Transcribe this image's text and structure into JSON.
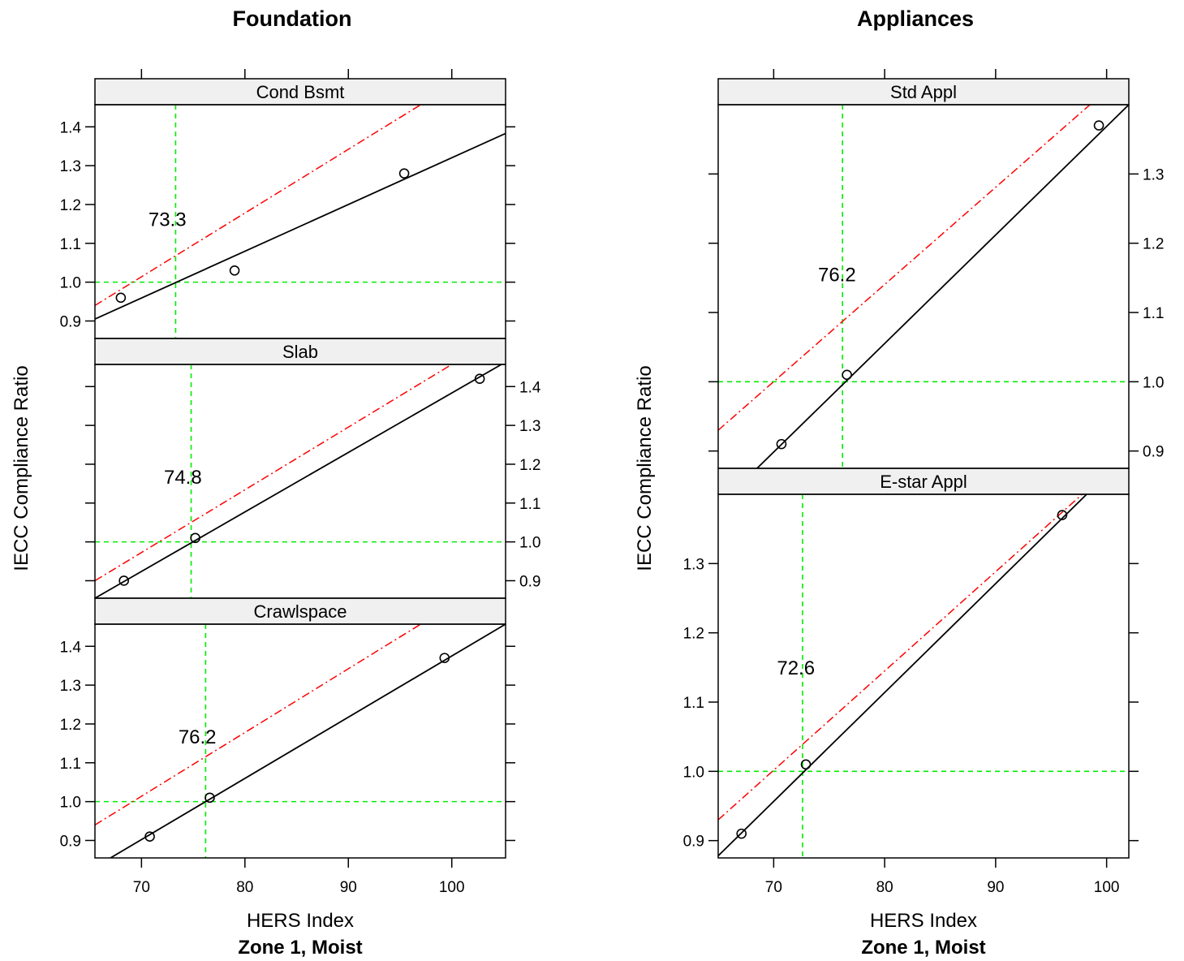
{
  "chart_data": [
    {
      "type": "scatter",
      "title": "Foundation",
      "xlabel": "HERS Index",
      "ylabel": "IECC Compliance Ratio",
      "subtitle": "Zone 1, Moist",
      "xlim": [
        65.5,
        105.2
      ],
      "ylim": [
        0.855,
        1.457
      ],
      "x_ticks": [
        70,
        80,
        90,
        100
      ],
      "y_ticks": [
        0.9,
        1.0,
        1.1,
        1.2,
        1.3,
        1.4
      ],
      "panels": [
        {
          "strip": "Cond Bsmt",
          "points": [
            [
              68.0,
              0.96
            ],
            [
              79.0,
              1.03
            ],
            [
              95.4,
              1.28
            ]
          ],
          "fit_line": [
            [
              65.5,
              0.905
            ],
            [
              105.2,
              1.383
            ]
          ],
          "upper_line": [
            [
              65.5,
              0.94
            ],
            [
              97.0,
              1.457
            ]
          ],
          "vline_x": 73.3,
          "hline_y": 1.0,
          "annotation": "73.3",
          "annotation_pos": [
            72.5,
            1.145
          ]
        },
        {
          "strip": "Slab",
          "points": [
            [
              68.3,
              0.9
            ],
            [
              75.2,
              1.01
            ],
            [
              102.7,
              1.42
            ]
          ],
          "fit_line": [
            [
              65.5,
              0.855
            ],
            [
              104.8,
              1.457
            ]
          ],
          "upper_line": [
            [
              65.5,
              0.9
            ],
            [
              100.0,
              1.457
            ]
          ],
          "vline_x": 74.8,
          "hline_y": 1.0,
          "annotation": "74.8",
          "annotation_pos": [
            74.0,
            1.15
          ]
        },
        {
          "strip": "Crawlspace",
          "points": [
            [
              70.8,
              0.91
            ],
            [
              76.6,
              1.01
            ],
            [
              99.3,
              1.37
            ]
          ],
          "fit_line": [
            [
              67.0,
              0.855
            ],
            [
              105.2,
              1.457
            ]
          ],
          "upper_line": [
            [
              65.5,
              0.94
            ],
            [
              97.0,
              1.457
            ]
          ],
          "vline_x": 76.2,
          "hline_y": 1.0,
          "annotation": "76.2",
          "annotation_pos": [
            75.4,
            1.15
          ]
        }
      ]
    },
    {
      "type": "scatter",
      "title": "Appliances",
      "xlabel": "HERS Index",
      "ylabel": "IECC Compliance Ratio",
      "subtitle": "Zone 1, Moist",
      "xlim": [
        65.0,
        102.0
      ],
      "ylim": [
        0.875,
        1.4
      ],
      "x_ticks": [
        70,
        80,
        90,
        100
      ],
      "y_ticks": [
        0.9,
        1.0,
        1.1,
        1.2,
        1.3
      ],
      "panels": [
        {
          "strip": "E-star Appl",
          "points": [
            [
              67.1,
              0.91
            ],
            [
              72.9,
              1.01
            ],
            [
              96.0,
              1.37
            ]
          ],
          "fit_line": [
            [
              65.0,
              0.878
            ],
            [
              98.2,
              1.4
            ]
          ],
          "upper_line": [
            [
              65.0,
              0.93
            ],
            [
              97.8,
              1.4
            ]
          ],
          "vline_x": 72.6,
          "hline_y": 1.0,
          "annotation": "72.6",
          "annotation_pos": [
            72.0,
            1.14
          ]
        },
        {
          "strip": "Std Appl",
          "points": [
            [
              70.7,
              0.91
            ],
            [
              76.6,
              1.01
            ],
            [
              99.3,
              1.37
            ]
          ],
          "fit_line": [
            [
              68.5,
              0.875
            ],
            [
              102.0,
              1.4
            ]
          ],
          "upper_line": [
            [
              65.0,
              0.93
            ],
            [
              98.5,
              1.4
            ]
          ],
          "vline_x": 76.2,
          "hline_y": 1.0,
          "annotation": "76.2",
          "annotation_pos": [
            75.7,
            1.145
          ]
        }
      ]
    }
  ]
}
